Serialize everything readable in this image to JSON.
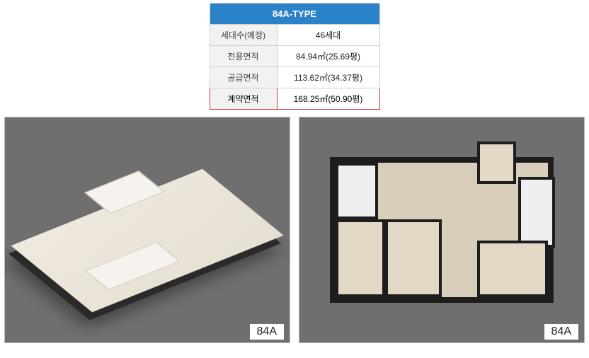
{
  "header": {
    "title": "84A-TYPE"
  },
  "table": {
    "header_bg": "#2b82c9",
    "header_fg": "#ffffff",
    "cell_border": "#cfcfcf",
    "label_bg": "#f2f2f2",
    "highlight_border": "#d43434",
    "rows": [
      {
        "label": "세대수(예정)",
        "value": "46세대",
        "highlight": false
      },
      {
        "label": "전용면적",
        "value": "84.94㎡(25.69평)",
        "highlight": false
      },
      {
        "label": "공급면적",
        "value": "113.62㎡(34.37평)",
        "highlight": false
      },
      {
        "label": "계약면적",
        "value": "168.25㎡(50.90평)",
        "highlight": true
      }
    ]
  },
  "panels": {
    "background": "#6f6f6f",
    "border": "#b9b9b9",
    "caption_bg": "#ffffff",
    "left": {
      "caption": "84A",
      "kind": "isometric-floorplan"
    },
    "right": {
      "caption": "84A",
      "kind": "top-down-floorplan"
    }
  },
  "floorplan_colors": {
    "floor": "#e3d7c5",
    "floor_light": "#efe9df",
    "wall": "#1d1d1d",
    "fixture": "#efefef"
  }
}
